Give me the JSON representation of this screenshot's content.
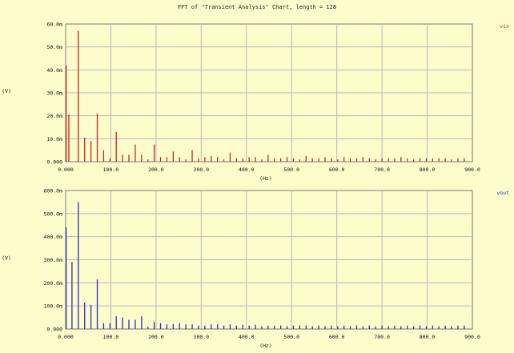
{
  "title": "FFT of \"Transient Analysis\" Chart, length = 128",
  "colors": {
    "background": "#fdfccb",
    "grid": "#b8b8b8",
    "vin": "#cc2222",
    "vout": "#2a2ac8"
  },
  "chart_data": [
    {
      "type": "bar",
      "series": [
        {
          "name": "vin",
          "color": "#cc2222"
        }
      ],
      "xlabel": "(Hz)",
      "ylabel": "(V)",
      "xlim": [
        0,
        900
      ],
      "ylim": [
        0,
        60
      ],
      "xticks": [
        "0.000",
        "100.0",
        "200.0",
        "300.0",
        "400.0",
        "500.0",
        "600.0",
        "700.0",
        "800.0",
        "900.0"
      ],
      "yticks": [
        "0.000",
        "10.0m",
        "20.0m",
        "30.0m",
        "40.0m",
        "50.0m",
        "60.0m"
      ],
      "grid": true,
      "legend_position": "top-right",
      "x": [
        0,
        7,
        28,
        42,
        56,
        70,
        84,
        98,
        112,
        126,
        140,
        154,
        168,
        182,
        196,
        210,
        224,
        238,
        252,
        266,
        280,
        294,
        308,
        322,
        336,
        350,
        364,
        378,
        392,
        406,
        420,
        434,
        448,
        462,
        476,
        490,
        504,
        518,
        532,
        546,
        560,
        574,
        588,
        602,
        616,
        630,
        644,
        658,
        672,
        686,
        700,
        714,
        728,
        742,
        756,
        770,
        784,
        798,
        812,
        826,
        840,
        854,
        868,
        882
      ],
      "values": [
        42,
        20.5,
        57,
        10.5,
        9,
        21,
        5,
        1.5,
        13,
        3,
        3,
        7.5,
        3,
        1,
        7.5,
        2,
        2,
        4.5,
        2,
        1,
        5,
        1.5,
        2,
        2.5,
        2,
        1,
        4,
        1.5,
        1.5,
        2,
        2,
        1,
        3,
        1.5,
        1.5,
        2,
        1.5,
        1,
        2.5,
        1.5,
        1.5,
        2,
        1.5,
        1,
        2,
        1.5,
        1.5,
        2,
        1.5,
        1,
        1.5,
        1.5,
        1.5,
        2,
        1.5,
        1,
        1.5,
        1.5,
        1.5,
        1.5,
        1.5,
        1,
        1.5,
        1.5
      ]
    },
    {
      "type": "bar",
      "series": [
        {
          "name": "vout",
          "color": "#2a2ac8"
        }
      ],
      "xlabel": "(Hz)",
      "ylabel": "(V)",
      "xlim": [
        0,
        900
      ],
      "ylim": [
        0,
        600
      ],
      "xticks": [
        "0.000",
        "100.0",
        "200.0",
        "300.0",
        "400.0",
        "500.0",
        "600.0",
        "700.0",
        "800.0",
        "900.0"
      ],
      "yticks": [
        "0.000",
        "100.0m",
        "200.0m",
        "300.0m",
        "400.0m",
        "500.0m",
        "600.0m"
      ],
      "grid": true,
      "legend_position": "top-right",
      "x": [
        0,
        14,
        28,
        42,
        56,
        70,
        84,
        98,
        112,
        126,
        140,
        154,
        168,
        182,
        196,
        210,
        224,
        238,
        252,
        266,
        280,
        294,
        308,
        322,
        336,
        350,
        364,
        378,
        392,
        406,
        420,
        434,
        448,
        462,
        476,
        490,
        504,
        518,
        532,
        546,
        560,
        574,
        588,
        602,
        616,
        630,
        644,
        658,
        672,
        686,
        700,
        714,
        728,
        742,
        756,
        770,
        784,
        798,
        812,
        826,
        840,
        854,
        868,
        882
      ],
      "values": [
        440,
        290,
        550,
        115,
        105,
        215,
        25,
        25,
        55,
        50,
        40,
        40,
        55,
        10,
        30,
        25,
        20,
        22,
        25,
        20,
        20,
        15,
        15,
        20,
        20,
        15,
        20,
        15,
        18,
        15,
        18,
        12,
        15,
        15,
        15,
        12,
        15,
        15,
        15,
        12,
        15,
        12,
        15,
        12,
        15,
        12,
        15,
        12,
        15,
        12,
        15,
        12,
        15,
        12,
        15,
        12,
        15,
        12,
        15,
        12,
        15,
        12,
        15,
        15
      ]
    }
  ]
}
